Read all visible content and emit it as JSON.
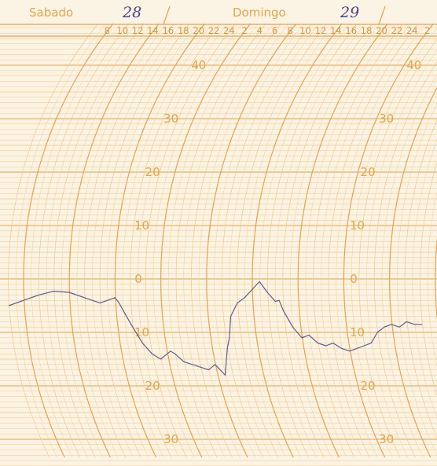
{
  "chart_data": {
    "type": "line",
    "title": "",
    "xlabel": "",
    "ylabel": "",
    "ylim": [
      -36,
      47
    ],
    "y_ticks": [
      40,
      30,
      20,
      10,
      0,
      -10,
      -20,
      -30
    ],
    "y_tick_labels": [
      "40",
      "30",
      "20",
      "10",
      "0",
      "10",
      "20",
      "30"
    ],
    "days": [
      {
        "name": "Sabado",
        "number": "28"
      },
      {
        "name": "Domingo",
        "number": "29"
      }
    ],
    "hour_ticks": [
      "8",
      "10",
      "12",
      "14",
      "16",
      "18",
      "20",
      "22",
      "24",
      "2",
      "4",
      "6",
      "8",
      "10",
      "12",
      "14",
      "16",
      "18",
      "20",
      "22",
      "24",
      "2",
      "4",
      "6"
    ],
    "grid": true,
    "series": [
      {
        "color": "#5e5a8e",
        "x_hours": [
          0,
          2,
          4,
          6,
          8,
          10,
          12,
          13,
          14,
          14.5,
          15,
          16,
          17,
          18,
          19,
          20,
          20.5,
          21,
          22,
          23,
          24,
          25,
          26,
          27,
          28,
          28.5,
          29,
          30,
          31,
          32,
          33,
          34,
          35,
          35.5,
          36,
          37,
          38,
          39,
          40,
          41,
          42,
          43,
          44,
          45,
          46,
          47,
          48,
          49,
          50,
          51,
          52,
          53,
          54
        ],
        "values": [
          -5,
          -4,
          -3,
          -2.3,
          -2.5,
          -3.5,
          -4.5,
          -4,
          -3.5,
          -4.5,
          -6,
          -9,
          -12,
          -14,
          -15,
          -14,
          -13.5,
          -14,
          -15.5,
          -16,
          -16.5,
          -17,
          -16,
          -18,
          -13,
          -11,
          -7,
          -4.5,
          -3.5,
          -2,
          -0.5,
          -2.5,
          -4.2,
          -4,
          -6,
          -9,
          -11,
          -10.5,
          -12,
          -12.5,
          -12,
          -13,
          -13.5,
          -13,
          -12.5,
          -12,
          -10,
          -9,
          -8.5,
          -9,
          -8,
          -8.5,
          -8.5
        ]
      }
    ]
  }
}
